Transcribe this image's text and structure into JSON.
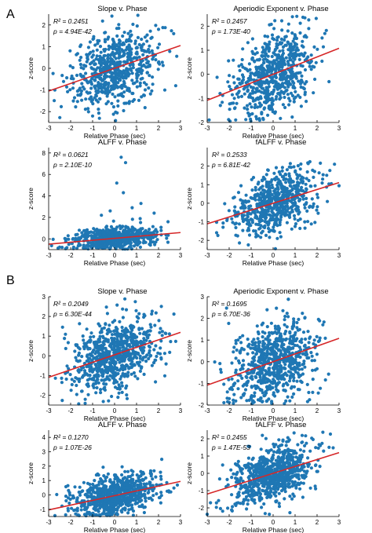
{
  "figure": {
    "panel_labels": [
      "A",
      "B"
    ],
    "shared_xlabel": "Relative Phase (sec)",
    "shared_ylabel": "z-score",
    "colors": {
      "points": "#1f77b4",
      "fit_line": "#d62728"
    }
  },
  "chart_data": [
    {
      "panel": "A",
      "type": "scatter",
      "title": "Slope v. Phase",
      "r2_label": "R² = 0.2451",
      "p_label": "p = 4.94E-42",
      "xlabel": "Relative Phase (sec)",
      "ylabel": "z-score",
      "xlim": [
        -3,
        3
      ],
      "ylim": [
        -2.5,
        2.5
      ],
      "xticks": [
        -3,
        -2,
        -1,
        0,
        1,
        2,
        3
      ],
      "yticks": [
        -2,
        -1,
        0,
        1,
        2
      ],
      "fit": {
        "slope": 0.35,
        "intercept": 0
      },
      "n_points": 650,
      "y_scatter": 0.85,
      "grid": false,
      "legend": "none"
    },
    {
      "panel": "A",
      "type": "scatter",
      "title": "Aperiodic Exponent v. Phase",
      "r2_label": "R² = 0.2457",
      "p_label": "p = 1.73E-40",
      "xlabel": "Relative Phase (sec)",
      "ylabel": "z-score",
      "xlim": [
        -3,
        3
      ],
      "ylim": [
        -2,
        2.5
      ],
      "xticks": [
        -3,
        -2,
        -1,
        0,
        1,
        2,
        3
      ],
      "yticks": [
        -2,
        -1,
        0,
        1,
        2
      ],
      "fit": {
        "slope": 0.36,
        "intercept": 0
      },
      "n_points": 650,
      "y_scatter": 0.85,
      "grid": false,
      "legend": "none"
    },
    {
      "panel": "A",
      "type": "scatter",
      "title": "ALFF v. Phase",
      "r2_label": "R² = 0.0621",
      "p_label": "p = 2.10E-10",
      "xlabel": "Relative Phase (sec)",
      "ylabel": "z-score",
      "xlim": [
        -3,
        3
      ],
      "ylim": [
        -1,
        8.5
      ],
      "xticks": [
        -3,
        -2,
        -1,
        0,
        1,
        2,
        3
      ],
      "yticks": [
        0,
        2,
        4,
        6,
        8
      ],
      "fit": {
        "slope": 0.18,
        "intercept": 0.05
      },
      "n_points": 650,
      "y_scatter": 0.5,
      "outliers": [
        [
          0.3,
          7.6
        ],
        [
          0.5,
          7.1
        ],
        [
          0.1,
          5.2
        ],
        [
          0.4,
          4.3
        ],
        [
          1.2,
          3.3
        ],
        [
          0.8,
          2.9
        ],
        [
          -0.2,
          2.6
        ],
        [
          1.8,
          2.4
        ],
        [
          -0.6,
          2.2
        ]
      ],
      "grid": false,
      "legend": "none"
    },
    {
      "panel": "A",
      "type": "scatter",
      "title": "fALFF v. Phase",
      "r2_label": "R² = 0.2533",
      "p_label": "p = 6.81E-42",
      "xlabel": "Relative Phase (sec)",
      "ylabel": "z-score",
      "xlim": [
        -3,
        3
      ],
      "ylim": [
        -2.5,
        3
      ],
      "xticks": [
        -3,
        -2,
        -1,
        0,
        1,
        2,
        3
      ],
      "yticks": [
        -2,
        -1,
        0,
        1,
        2
      ],
      "fit": {
        "slope": 0.37,
        "intercept": 0
      },
      "n_points": 650,
      "y_scatter": 0.8,
      "grid": false,
      "legend": "none"
    },
    {
      "panel": "B",
      "type": "scatter",
      "title": "Slope v. Phase",
      "r2_label": "R² = 0.2049",
      "p_label": "p = 6.30E-44",
      "xlabel": "Relative Phase (sec)",
      "ylabel": "z-score",
      "xlim": [
        -3,
        3
      ],
      "ylim": [
        -2.5,
        3
      ],
      "xticks": [
        -3,
        -2,
        -1,
        0,
        1,
        2,
        3
      ],
      "yticks": [
        -2,
        -1,
        0,
        1,
        2,
        3
      ],
      "fit": {
        "slope": 0.38,
        "intercept": 0.05
      },
      "n_points": 750,
      "y_scatter": 0.9,
      "grid": false,
      "legend": "none"
    },
    {
      "panel": "B",
      "type": "scatter",
      "title": "Aperiodic Exponent v. Phase",
      "r2_label": "R² = 0.1695",
      "p_label": "p = 6.70E-36",
      "xlabel": "Relative Phase (sec)",
      "ylabel": "z-score",
      "xlim": [
        -3,
        3
      ],
      "ylim": [
        -2,
        3
      ],
      "xticks": [
        -3,
        -2,
        -1,
        0,
        1,
        2,
        3
      ],
      "yticks": [
        -2,
        -1,
        0,
        1,
        2,
        3
      ],
      "fit": {
        "slope": 0.36,
        "intercept": 0
      },
      "n_points": 750,
      "y_scatter": 0.9,
      "grid": false,
      "legend": "none"
    },
    {
      "panel": "B",
      "type": "scatter",
      "title": "ALFF v. Phase",
      "r2_label": "R² = 0.1270",
      "p_label": "p = 1.07E-26",
      "xlabel": "Relative Phase (sec)",
      "ylabel": "z-score",
      "xlim": [
        -3,
        3
      ],
      "ylim": [
        -1.5,
        4.5
      ],
      "xticks": [
        -3,
        -2,
        -1,
        0,
        1,
        2,
        3
      ],
      "yticks": [
        -1,
        0,
        1,
        2,
        3,
        4
      ],
      "fit": {
        "slope": 0.33,
        "intercept": -0.05
      },
      "n_points": 750,
      "y_scatter": 0.7,
      "grid": false,
      "legend": "none"
    },
    {
      "panel": "B",
      "type": "scatter",
      "title": "fALFF v. Phase",
      "r2_label": "R² = 0.2455",
      "p_label": "p = 1.47E-53",
      "xlabel": "Relative Phase (sec)",
      "ylabel": "z-score",
      "xlim": [
        -3,
        3
      ],
      "ylim": [
        -2.5,
        2.5
      ],
      "xticks": [
        -3,
        -2,
        -1,
        0,
        1,
        2,
        3
      ],
      "yticks": [
        -2,
        -1,
        0,
        1,
        2
      ],
      "fit": {
        "slope": 0.4,
        "intercept": 0
      },
      "n_points": 750,
      "y_scatter": 0.8,
      "grid": false,
      "legend": "none"
    }
  ]
}
